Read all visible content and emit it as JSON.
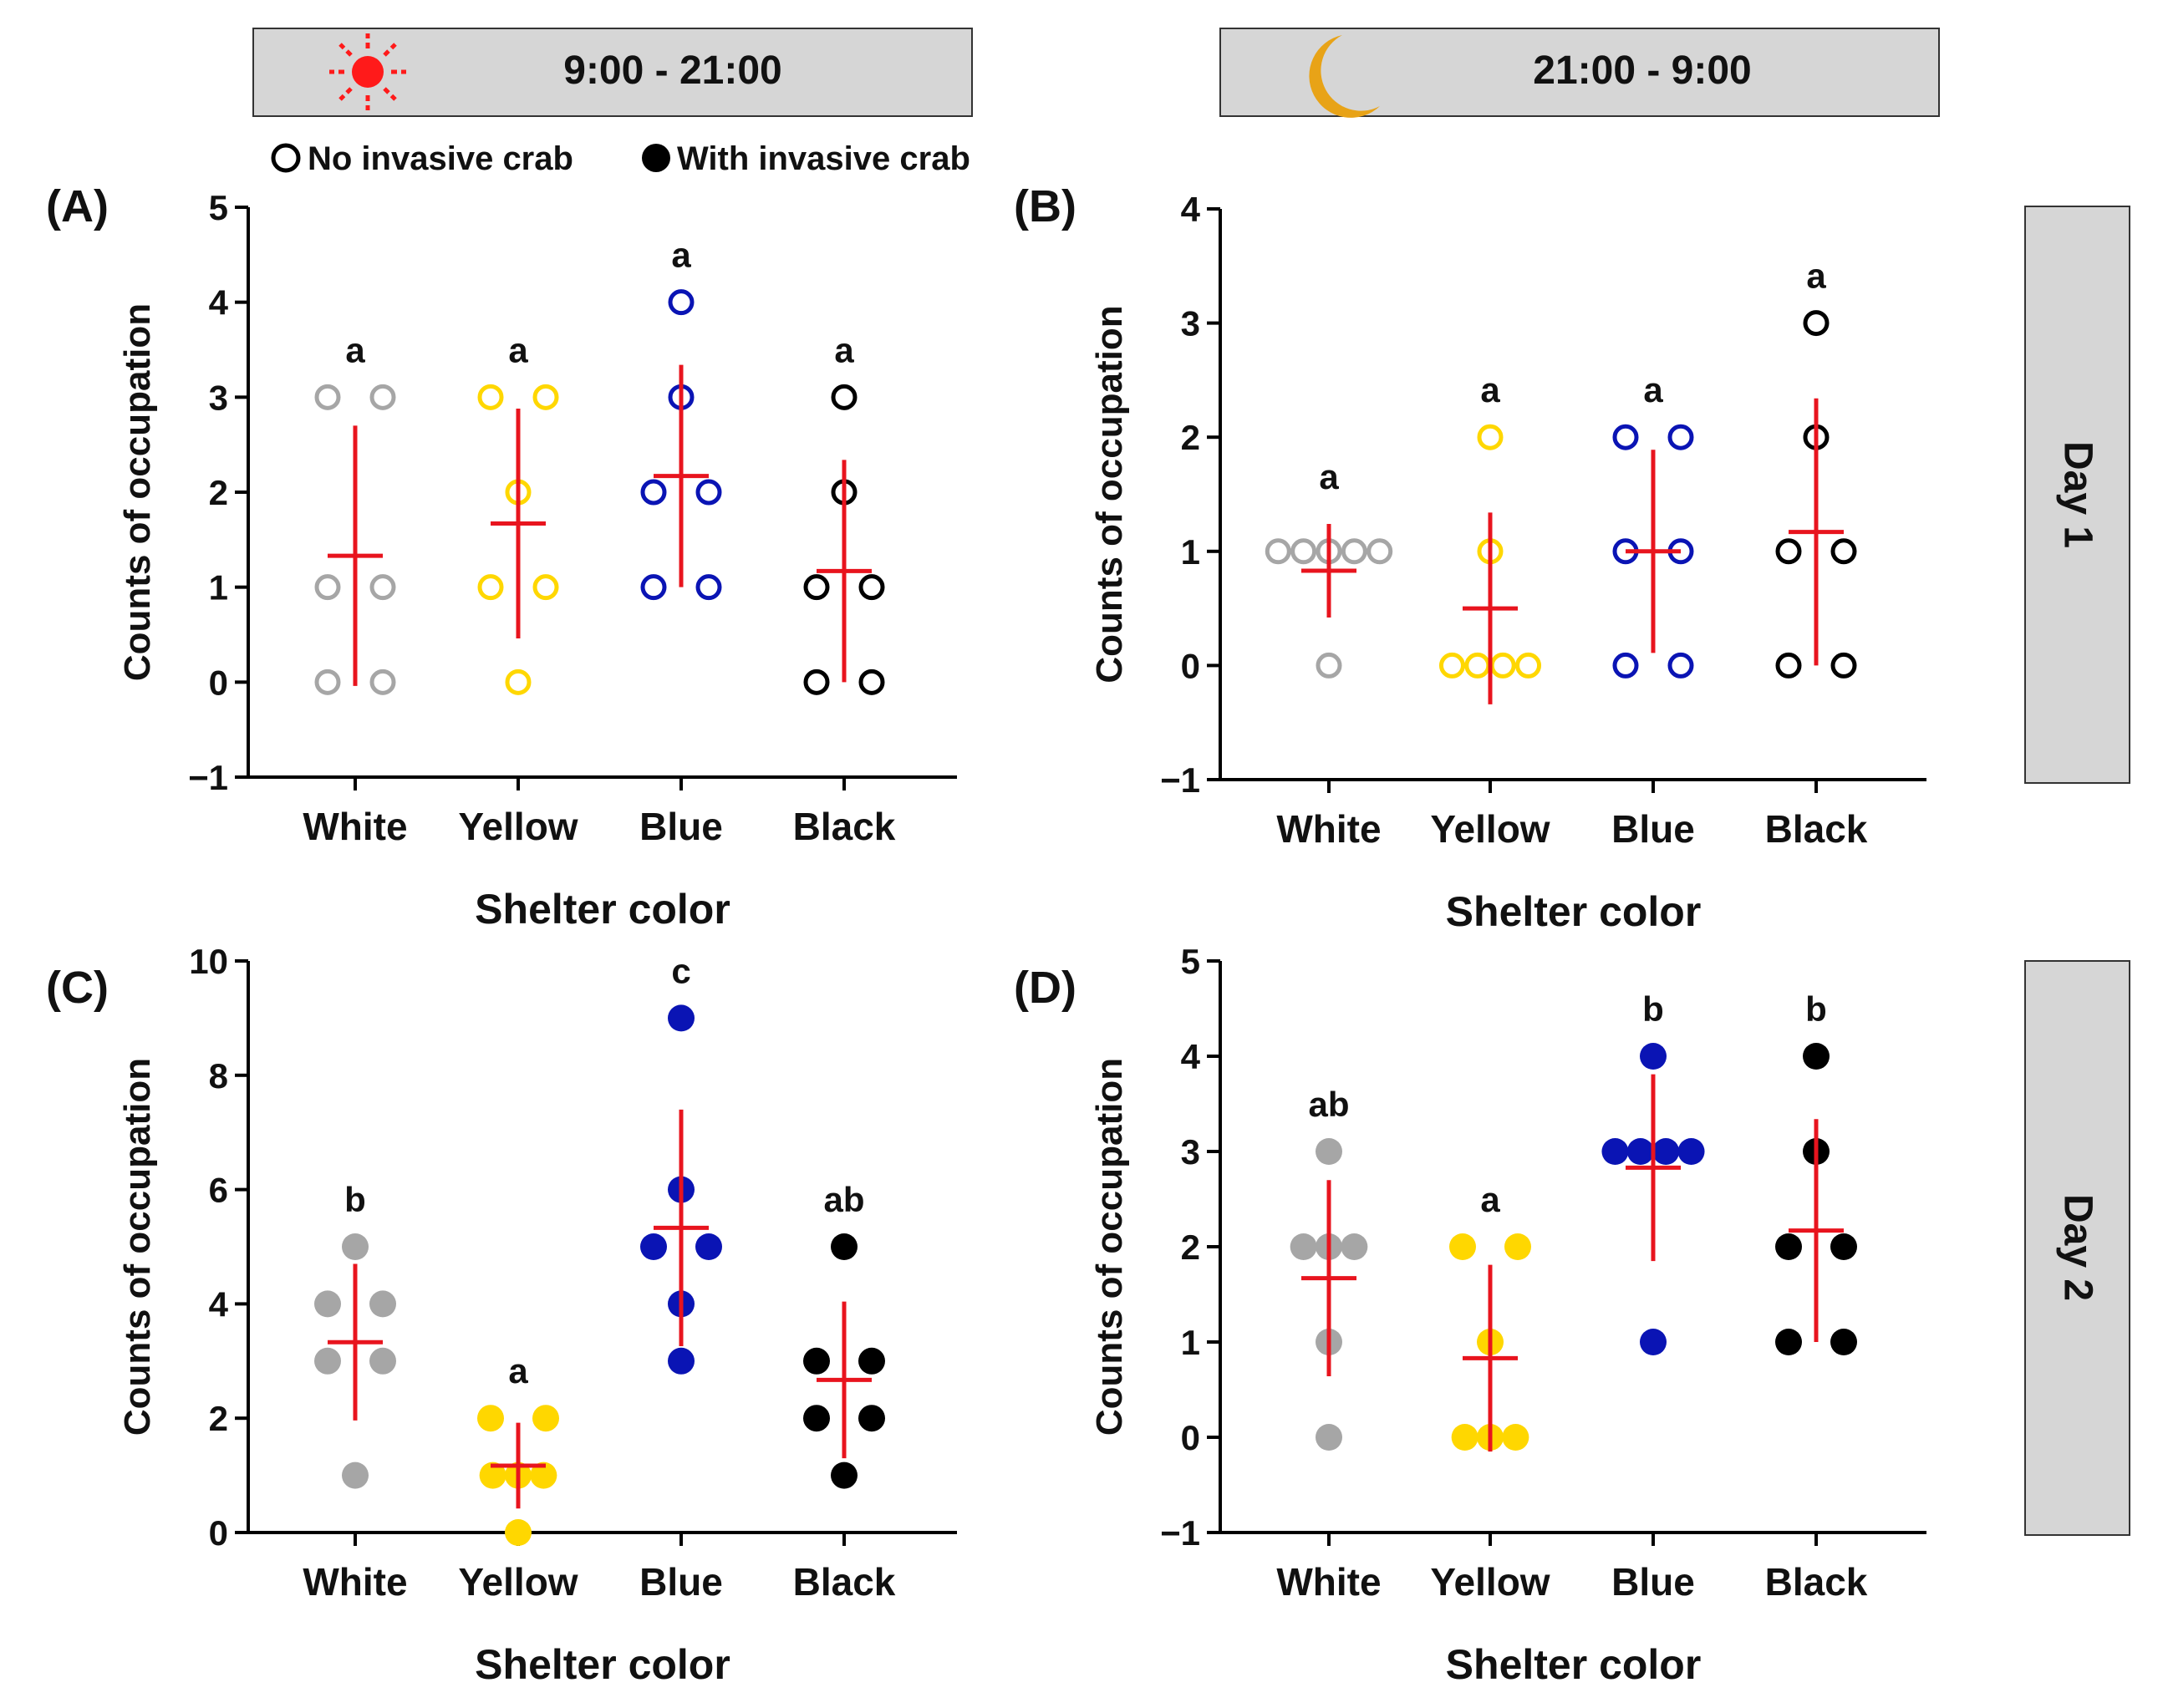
{
  "header": {
    "day_period": "9:00 - 21:00",
    "night_period": "21:00 - 9:00",
    "sun_icon": "sun-icon",
    "moon_icon": "moon-icon"
  },
  "legend": {
    "open_label": "No invasive crab",
    "filled_label": "With invasive crab"
  },
  "side_labels": [
    "Day 1",
    "Day 2"
  ],
  "colors": {
    "White": "#a6a6a6",
    "Yellow": "#ffd700",
    "Blue": "#0a14b4",
    "Black": "#000000",
    "stat": "#e8141e",
    "header_bg": "#d6d6d6",
    "sun": "#ff1a1a",
    "moon": "#e8a317"
  },
  "chart_data": [
    {
      "panel": "(A)",
      "type": "scatter",
      "marker": "open",
      "ylabel": "Counts of occupation",
      "xlabel": "Shelter color",
      "ylim": [
        -1,
        5
      ],
      "yticks": [
        -1,
        0,
        1,
        2,
        3,
        4,
        5
      ],
      "ytick_labels": [
        "−1",
        "0",
        "1",
        "2",
        "3",
        "4",
        "5"
      ],
      "categories": [
        "White",
        "Yellow",
        "Blue",
        "Black"
      ],
      "values": [
        [
          3,
          3,
          1,
          1,
          0,
          0
        ],
        [
          3,
          3,
          2,
          1,
          1,
          0
        ],
        [
          4,
          3,
          2,
          2,
          1,
          1
        ],
        [
          3,
          2,
          1,
          1,
          0,
          0
        ]
      ],
      "means": [
        1.33,
        1.67,
        2.17,
        1.17
      ],
      "sd": [
        1.37,
        1.21,
        1.17,
        1.17
      ],
      "letters": [
        "a",
        "a",
        "a",
        "a"
      ]
    },
    {
      "panel": "(B)",
      "type": "scatter",
      "marker": "open",
      "ylabel": "Counts of occupation",
      "xlabel": "Shelter color",
      "ylim": [
        -1,
        4
      ],
      "yticks": [
        -1,
        0,
        1,
        2,
        3,
        4
      ],
      "ytick_labels": [
        "−1",
        "0",
        "1",
        "2",
        "3",
        "4"
      ],
      "categories": [
        "White",
        "Yellow",
        "Blue",
        "Black"
      ],
      "values": [
        [
          1,
          1,
          1,
          1,
          1,
          0
        ],
        [
          2,
          1,
          0,
          0,
          0,
          0
        ],
        [
          2,
          2,
          1,
          1,
          0,
          0
        ],
        [
          3,
          2,
          1,
          1,
          0,
          0
        ]
      ],
      "means": [
        0.83,
        0.5,
        1.0,
        1.17
      ],
      "sd": [
        0.41,
        0.84,
        0.89,
        1.17
      ],
      "letters": [
        "a",
        "a",
        "a",
        "a"
      ]
    },
    {
      "panel": "(C)",
      "type": "scatter",
      "marker": "filled",
      "ylabel": "Counts of occupation",
      "xlabel": "Shelter color",
      "ylim": [
        0,
        10
      ],
      "yticks": [
        0,
        2,
        4,
        6,
        8,
        10
      ],
      "ytick_labels": [
        "0",
        "2",
        "4",
        "6",
        "8",
        "10"
      ],
      "categories": [
        "White",
        "Yellow",
        "Blue",
        "Black"
      ],
      "values": [
        [
          5,
          4,
          4,
          3,
          3,
          1
        ],
        [
          2,
          2,
          1,
          1,
          1,
          0
        ],
        [
          9,
          6,
          5,
          5,
          4,
          3
        ],
        [
          5,
          3,
          3,
          2,
          2,
          1
        ]
      ],
      "means": [
        3.33,
        1.17,
        5.33,
        2.67
      ],
      "sd": [
        1.37,
        0.75,
        2.07,
        1.37
      ],
      "letters": [
        "b",
        "a",
        "c",
        "ab"
      ]
    },
    {
      "panel": "(D)",
      "type": "scatter",
      "marker": "filled",
      "ylabel": "Counts of occupation",
      "xlabel": "Shelter color",
      "ylim": [
        -1,
        5
      ],
      "yticks": [
        -1,
        0,
        1,
        2,
        3,
        4,
        5
      ],
      "ytick_labels": [
        "−1",
        "0",
        "1",
        "2",
        "3",
        "4",
        "5"
      ],
      "categories": [
        "White",
        "Yellow",
        "Blue",
        "Black"
      ],
      "values": [
        [
          3,
          2,
          2,
          2,
          1,
          0
        ],
        [
          2,
          2,
          1,
          0,
          0,
          0
        ],
        [
          4,
          3,
          3,
          3,
          3,
          1
        ],
        [
          4,
          3,
          2,
          2,
          1,
          1
        ]
      ],
      "means": [
        1.67,
        0.83,
        2.83,
        2.17
      ],
      "sd": [
        1.03,
        0.98,
        0.98,
        1.17
      ],
      "letters": [
        "ab",
        "a",
        "b",
        "b"
      ]
    }
  ]
}
